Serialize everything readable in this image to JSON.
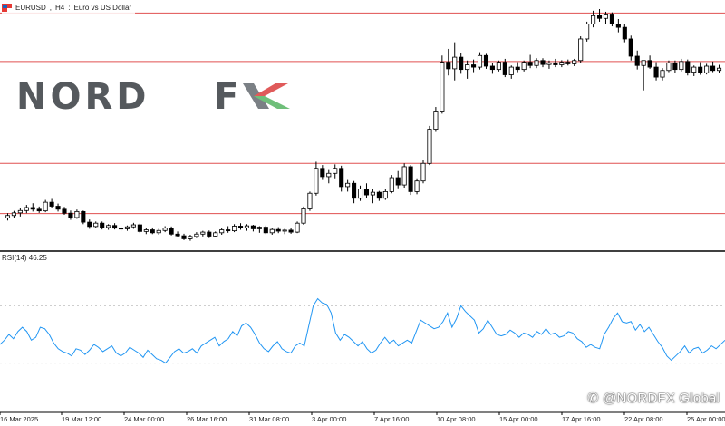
{
  "header": {
    "symbol": "EURUSD",
    "timeframe": "H4",
    "description": "Euro vs US Dollar",
    "icon": "flag-icon"
  },
  "indicator": {
    "label": "RSI(14) 46.25"
  },
  "logo": {
    "text_left": "NORD",
    "text_right": "FX",
    "colors": {
      "dark": "#55595d",
      "red": "#e05a5a",
      "green": "#6fbf7a",
      "grey": "#7b8085"
    }
  },
  "watermark": {
    "text": "@NORDFX Global",
    "icon": "chat-bubble-icon"
  },
  "colors": {
    "candle_up_fill": "#ffffff",
    "candle_down_fill": "#000000",
    "candle_line": "#000000",
    "level_line": "#e05050",
    "rsi_line": "#2196f3",
    "rsi_levels": "#c8c8c8",
    "panel_divider": "#000000",
    "axis_text": "#222222"
  },
  "chart_data": [
    {
      "type": "candlestick",
      "title": "EURUSD, H4: Euro vs US Dollar",
      "price_range": [
        1.079,
        1.15
      ],
      "horizontal_levels": [
        1.1488,
        1.1342,
        1.1035,
        1.0884
      ],
      "x_labels": [
        "16 Mar 2025",
        "19 Mar 12:00",
        "24 Mar 00:00",
        "26 Mar 16:00",
        "31 Mar 08:00",
        "3 Apr 00:00",
        "7 Apr 16:00",
        "10 Apr 08:00",
        "15 Apr 00:00",
        "17 Apr 16:00",
        "22 Apr 08:00",
        "25 Apr 00:00"
      ],
      "grid": false,
      "candles": [
        [
          1.0871,
          1.0885,
          1.0863,
          1.0878
        ],
        [
          1.0878,
          1.0892,
          1.087,
          1.0886
        ],
        [
          1.0886,
          1.09,
          1.0875,
          1.0893
        ],
        [
          1.0893,
          1.091,
          1.0885,
          1.0902
        ],
        [
          1.0902,
          1.0915,
          1.089,
          1.0897
        ],
        [
          1.0897,
          1.0905,
          1.0886,
          1.0892
        ],
        [
          1.0892,
          1.0925,
          1.0888,
          1.0918
        ],
        [
          1.0918,
          1.0928,
          1.09,
          1.0906
        ],
        [
          1.0906,
          1.0914,
          1.089,
          1.0897
        ],
        [
          1.0897,
          1.0904,
          1.088,
          1.0885
        ],
        [
          1.0885,
          1.0893,
          1.0865,
          1.0872
        ],
        [
          1.0872,
          1.0896,
          1.0868,
          1.089
        ],
        [
          1.089,
          1.0893,
          1.0852,
          1.0858
        ],
        [
          1.0858,
          1.0866,
          1.0838,
          1.0845
        ],
        [
          1.0845,
          1.086,
          1.084,
          1.0855
        ],
        [
          1.0855,
          1.086,
          1.0836,
          1.0842
        ],
        [
          1.0842,
          1.0852,
          1.0835,
          1.0848
        ],
        [
          1.0848,
          1.0855,
          1.0836,
          1.084
        ],
        [
          1.084,
          1.0846,
          1.083,
          1.0838
        ],
        [
          1.0838,
          1.0848,
          1.0832,
          1.0844
        ],
        [
          1.0844,
          1.0856,
          1.0838,
          1.085
        ],
        [
          1.085,
          1.0854,
          1.0825,
          1.083
        ],
        [
          1.083,
          1.084,
          1.0822,
          1.0835
        ],
        [
          1.0835,
          1.0842,
          1.0822,
          1.0826
        ],
        [
          1.0826,
          1.0838,
          1.082,
          1.0833
        ],
        [
          1.0833,
          1.0846,
          1.0828,
          1.084
        ],
        [
          1.084,
          1.0845,
          1.0818,
          1.0822
        ],
        [
          1.0822,
          1.083,
          1.0812,
          1.0817
        ],
        [
          1.0817,
          1.0823,
          1.0804,
          1.0808
        ],
        [
          1.0808,
          1.082,
          1.0802,
          1.0815
        ],
        [
          1.0815,
          1.0828,
          1.081,
          1.0822
        ],
        [
          1.0822,
          1.0832,
          1.0815,
          1.0828
        ],
        [
          1.0828,
          1.0833,
          1.081,
          1.0816
        ],
        [
          1.0816,
          1.083,
          1.0812,
          1.0826
        ],
        [
          1.0826,
          1.084,
          1.082,
          1.0835
        ],
        [
          1.0835,
          1.0846,
          1.0826,
          1.0832
        ],
        [
          1.0832,
          1.0852,
          1.0828,
          1.0846
        ],
        [
          1.0846,
          1.0855,
          1.0835,
          1.0841
        ],
        [
          1.0841,
          1.0852,
          1.0832,
          1.0847
        ],
        [
          1.0847,
          1.085,
          1.083,
          1.0838
        ],
        [
          1.0838,
          1.0846,
          1.0826,
          1.0843
        ],
        [
          1.0843,
          1.0848,
          1.0822,
          1.0826
        ],
        [
          1.0826,
          1.084,
          1.082,
          1.0836
        ],
        [
          1.0836,
          1.0843,
          1.0825,
          1.0831
        ],
        [
          1.0831,
          1.0838,
          1.0822,
          1.0834
        ],
        [
          1.0834,
          1.084,
          1.0823,
          1.0828
        ],
        [
          1.0828,
          1.086,
          1.0825,
          1.0855
        ],
        [
          1.0855,
          1.0905,
          1.085,
          1.0898
        ],
        [
          1.0898,
          1.095,
          1.0892,
          1.0945
        ],
        [
          1.0945,
          1.104,
          1.0938,
          1.102
        ],
        [
          1.102,
          1.103,
          1.0985,
          1.0995
        ],
        [
          1.0995,
          1.1015,
          1.0975,
          1.1005
        ],
        [
          1.1005,
          1.1032,
          1.099,
          1.102
        ],
        [
          1.102,
          1.1028,
          1.095,
          1.0965
        ],
        [
          1.0965,
          1.0985,
          1.095,
          1.0975
        ],
        [
          1.0975,
          1.0982,
          1.0915,
          1.093
        ],
        [
          1.093,
          1.0968,
          1.0922,
          1.0958
        ],
        [
          1.0958,
          1.0975,
          1.093,
          1.094
        ],
        [
          1.094,
          1.0958,
          1.0915,
          1.0948
        ],
        [
          1.0948,
          1.0952,
          1.0922,
          1.093
        ],
        [
          1.093,
          1.0958,
          1.0925,
          1.095
        ],
        [
          1.095,
          1.1,
          1.0945,
          1.0992
        ],
        [
          1.0992,
          1.1012,
          1.096,
          1.097
        ],
        [
          1.097,
          1.1035,
          1.0962,
          1.1025
        ],
        [
          1.1025,
          1.103,
          1.094,
          1.095
        ],
        [
          1.095,
          1.099,
          1.0942,
          1.0982
        ],
        [
          1.0982,
          1.1045,
          1.0975,
          1.1035
        ],
        [
          1.1035,
          1.1148,
          1.103,
          1.1138
        ],
        [
          1.1138,
          1.1205,
          1.113,
          1.119
        ],
        [
          1.119,
          1.136,
          1.1185,
          1.134
        ],
        [
          1.134,
          1.138,
          1.13,
          1.132
        ],
        [
          1.132,
          1.14,
          1.1285,
          1.1355
        ],
        [
          1.1355,
          1.1368,
          1.1305,
          1.1318
        ],
        [
          1.1318,
          1.1345,
          1.129,
          1.1332
        ],
        [
          1.1332,
          1.1348,
          1.131,
          1.1325
        ],
        [
          1.1325,
          1.137,
          1.1318,
          1.136
        ],
        [
          1.136,
          1.1365,
          1.132,
          1.1328
        ],
        [
          1.1328,
          1.1338,
          1.1305,
          1.1318
        ],
        [
          1.1318,
          1.1345,
          1.1312,
          1.134
        ],
        [
          1.134,
          1.135,
          1.1295,
          1.1302
        ],
        [
          1.1302,
          1.133,
          1.129,
          1.1325
        ],
        [
          1.1325,
          1.134,
          1.131,
          1.1318
        ],
        [
          1.1318,
          1.1345,
          1.1312,
          1.134
        ],
        [
          1.134,
          1.1362,
          1.1322,
          1.133
        ],
        [
          1.133,
          1.1352,
          1.1322,
          1.1345
        ],
        [
          1.1345,
          1.1352,
          1.1325,
          1.1333
        ],
        [
          1.1333,
          1.1345,
          1.132,
          1.1338
        ],
        [
          1.1338,
          1.135,
          1.1325,
          1.1332
        ],
        [
          1.1332,
          1.1346,
          1.1325,
          1.134
        ],
        [
          1.134,
          1.1348,
          1.133,
          1.1335
        ],
        [
          1.1335,
          1.135,
          1.1328,
          1.1345
        ],
        [
          1.1345,
          1.1418,
          1.1338,
          1.141
        ],
        [
          1.141,
          1.1462,
          1.1402,
          1.1455
        ],
        [
          1.1455,
          1.1495,
          1.1445,
          1.148
        ],
        [
          1.148,
          1.15,
          1.1462,
          1.1472
        ],
        [
          1.1472,
          1.1492,
          1.1455,
          1.1485
        ],
        [
          1.1485,
          1.149,
          1.1448,
          1.1455
        ],
        [
          1.1455,
          1.147,
          1.143,
          1.1445
        ],
        [
          1.1445,
          1.1455,
          1.14,
          1.141
        ],
        [
          1.141,
          1.142,
          1.1345,
          1.1358
        ],
        [
          1.1358,
          1.1375,
          1.1318,
          1.133
        ],
        [
          1.133,
          1.1345,
          1.1255,
          1.1345
        ],
        [
          1.1345,
          1.136,
          1.132,
          1.1325
        ],
        [
          1.1325,
          1.134,
          1.1285,
          1.1295
        ],
        [
          1.1295,
          1.1322,
          1.1285,
          1.1315
        ],
        [
          1.1315,
          1.1345,
          1.131,
          1.1338
        ],
        [
          1.1338,
          1.1345,
          1.1308,
          1.1318
        ],
        [
          1.1318,
          1.135,
          1.1312,
          1.1342
        ],
        [
          1.1342,
          1.1348,
          1.13,
          1.131
        ],
        [
          1.131,
          1.133,
          1.1298,
          1.1325
        ],
        [
          1.1325,
          1.134,
          1.1302,
          1.1308
        ],
        [
          1.1308,
          1.1335,
          1.1303,
          1.1328
        ],
        [
          1.1328,
          1.1342,
          1.131,
          1.1315
        ],
        [
          1.1315,
          1.1332,
          1.1308,
          1.1322
        ]
      ]
    },
    {
      "type": "line",
      "title": "RSI(14) 46.25",
      "ylim": [
        0,
        100
      ],
      "levels": [
        70,
        30
      ],
      "series": [
        {
          "name": "RSI(14)",
          "values": [
            43,
            46,
            50,
            47,
            52,
            55,
            52,
            46,
            48,
            55,
            54,
            50,
            44,
            40,
            38,
            37,
            35,
            40,
            39,
            36,
            39,
            43,
            41,
            38,
            40,
            42,
            37,
            35,
            37,
            41,
            39,
            37,
            34,
            39,
            36,
            33,
            32,
            30,
            34,
            38,
            40,
            37,
            38,
            40,
            37,
            42,
            44,
            46,
            48,
            42,
            45,
            47,
            52,
            49,
            56,
            58,
            55,
            50,
            44,
            40,
            38,
            42,
            45,
            40,
            38,
            37,
            42,
            44,
            42,
            56,
            70,
            75,
            72,
            71,
            65,
            51,
            46,
            50,
            48,
            45,
            42,
            45,
            40,
            37,
            39,
            44,
            48,
            44,
            46,
            42,
            44,
            46,
            44,
            52,
            60,
            58,
            56,
            54,
            55,
            59,
            65,
            55,
            61,
            70,
            66,
            63,
            60,
            51,
            54,
            60,
            55,
            50,
            49,
            50,
            53,
            51,
            48,
            51,
            50,
            48,
            52,
            50,
            54,
            50,
            51,
            48,
            49,
            52,
            51,
            47,
            45,
            41,
            43,
            41,
            40,
            50,
            55,
            61,
            65,
            59,
            58,
            59,
            53,
            57,
            52,
            55,
            50,
            45,
            41,
            35,
            32,
            35,
            38,
            42,
            37,
            40,
            41,
            37,
            39,
            42,
            40,
            43,
            46
          ]
        }
      ]
    }
  ]
}
